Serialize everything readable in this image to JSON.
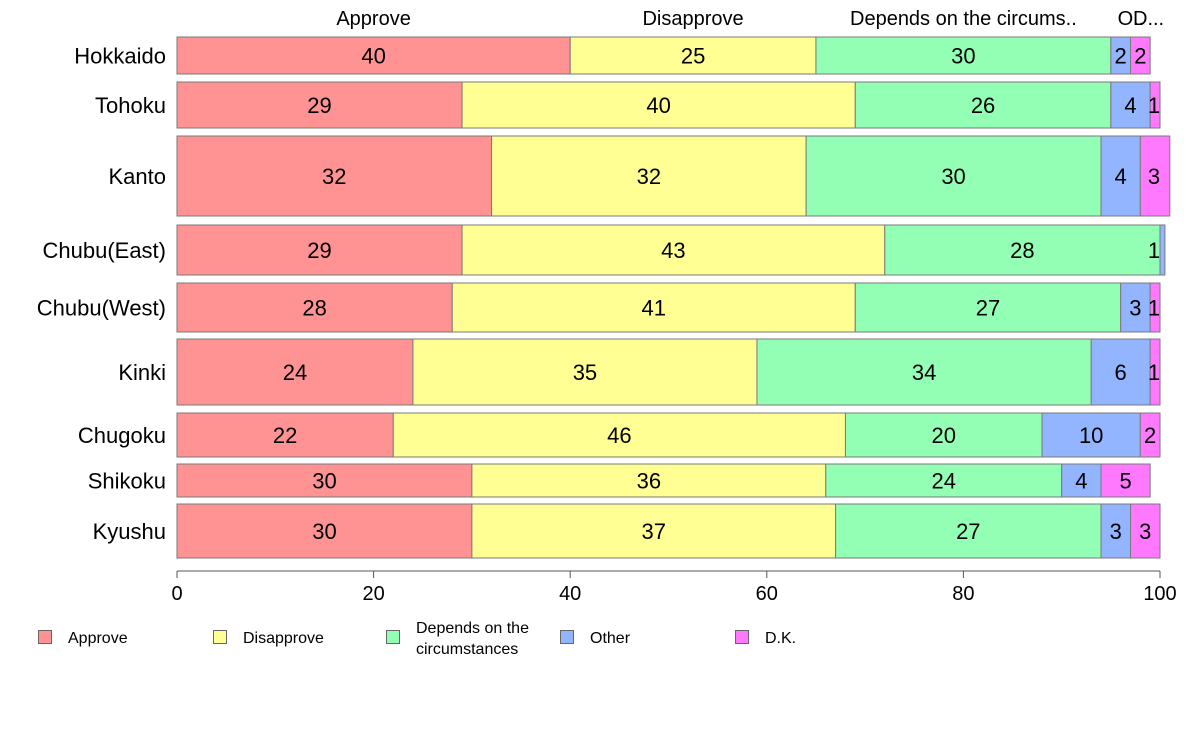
{
  "chart_data": {
    "type": "bar",
    "orientation": "horizontal",
    "stacked": true,
    "categories": [
      "Hokkaido",
      "Tohoku",
      "Kanto",
      "Chubu(East)",
      "Chubu(West)",
      "Kinki",
      "Chugoku",
      "Shikoku",
      "Kyushu"
    ],
    "series": [
      {
        "name": "Approve",
        "color": "#ff9393",
        "values": [
          40,
          29,
          32,
          29,
          28,
          24,
          22,
          30,
          30
        ]
      },
      {
        "name": "Disapprove",
        "color": "#ffff93",
        "values": [
          25,
          40,
          32,
          43,
          41,
          35,
          46,
          36,
          37
        ]
      },
      {
        "name": "Depends on the circumstances",
        "color": "#93ffb4",
        "values": [
          30,
          26,
          30,
          28,
          27,
          34,
          20,
          24,
          27
        ]
      },
      {
        "name": "Other",
        "color": "#93b4ff",
        "values": [
          2,
          4,
          4,
          0.5,
          3,
          6,
          10,
          4,
          3
        ]
      },
      {
        "name": "D.K.",
        "color": "#ff79ff",
        "values": [
          2,
          1,
          3,
          0,
          1,
          1,
          2,
          5,
          3
        ]
      }
    ],
    "value_labels": [
      [
        "40",
        "25",
        "30",
        "2",
        "2"
      ],
      [
        "29",
        "40",
        "26",
        "4",
        "1"
      ],
      [
        "32",
        "32",
        "30",
        "4",
        "3"
      ],
      [
        "29",
        "43",
        "28",
        "1",
        ""
      ],
      [
        "28",
        "41",
        "27",
        "3",
        "1"
      ],
      [
        "24",
        "35",
        "34",
        "6",
        "1"
      ],
      [
        "22",
        "46",
        "20",
        "10",
        "2"
      ],
      [
        "30",
        "36",
        "24",
        "4",
        "5"
      ],
      [
        "30",
        "37",
        "27",
        "3",
        "3"
      ]
    ],
    "top_labels": [
      "Approve",
      "Disapprove",
      "Depends on the circums..",
      "O..",
      "D..."
    ],
    "x_ticks": [
      0,
      20,
      40,
      60,
      80,
      100
    ],
    "xlim": [
      0,
      100
    ],
    "legend": {
      "position": "bottom",
      "labels": [
        "Approve",
        "Disapprove",
        "Depends on the\ncircumstances",
        "Other",
        "D.K."
      ]
    }
  }
}
